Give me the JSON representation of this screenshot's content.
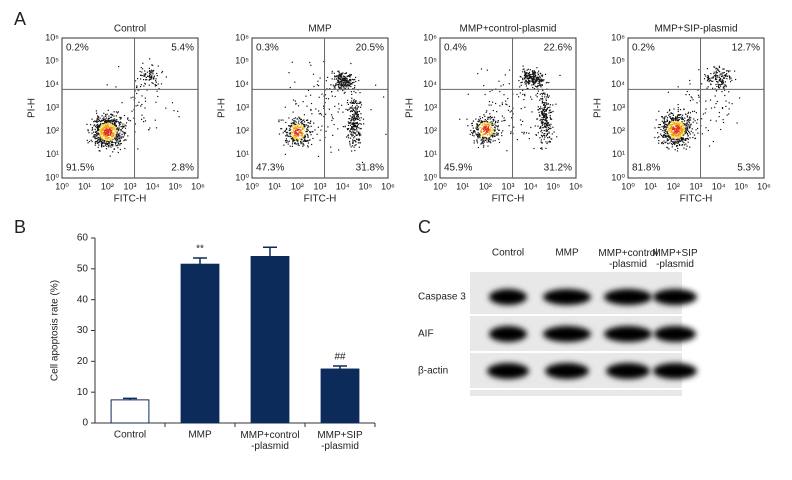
{
  "panel_labels": [
    "A",
    "B",
    "C"
  ],
  "flow": {
    "x_label": "FITC-H",
    "y_label": "PI-H",
    "ticks": [
      "10⁰",
      "10¹",
      "10²",
      "10³",
      "10⁴",
      "10⁵",
      "10⁶"
    ],
    "plots": [
      {
        "title": "Control",
        "quadrants": [
          "0.2%",
          "5.4%",
          "91.5%",
          "2.8%"
        ]
      },
      {
        "title": "MMP",
        "quadrants": [
          "0.3%",
          "20.5%",
          "47.3%",
          "31.8%"
        ]
      },
      {
        "title": "MMP+control-plasmid",
        "quadrants": [
          "0.4%",
          "22.6%",
          "45.9%",
          "31.2%"
        ]
      },
      {
        "title": "MMP+SIP-plasmid",
        "quadrants": [
          "0.2%",
          "12.7%",
          "81.8%",
          "5.3%"
        ]
      }
    ]
  },
  "chart_data": {
    "type": "bar",
    "y_label": "Cell apoptosis rate (%)",
    "categories": [
      "Control",
      "MMP",
      "MMP+control\n-plasmid",
      "MMP+SIP\n-plasmid"
    ],
    "values": [
      7.5,
      51.5,
      54,
      17.5
    ],
    "errors": [
      0.5,
      2,
      3,
      1
    ],
    "colors": [
      "#ffffff",
      "#0d2b5a",
      "#0d2b5a",
      "#0d2b5a"
    ],
    "annotations": [
      {
        "index": 1,
        "text": "**"
      },
      {
        "index": 3,
        "text": "##"
      }
    ],
    "ylim": [
      0,
      60
    ],
    "yticks": [
      0,
      10,
      20,
      30,
      40,
      50,
      60
    ]
  },
  "blot": {
    "columns": [
      "Control",
      "MMP",
      "MMP+control\n-plasmid",
      "MMP+SIP\n-plasmid"
    ],
    "rows": [
      "Caspase 3",
      "AIF",
      "β-actin"
    ]
  }
}
